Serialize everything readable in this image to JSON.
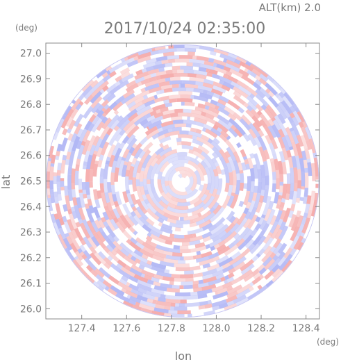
{
  "header": {
    "altitude_label": "ALT(km)  2.0",
    "timestamp": "2017/10/24  02:35:00"
  },
  "chart_data": {
    "type": "heatmap",
    "title": "2017/10/24  02:35:00",
    "subtitle": "ALT(km)  2.0",
    "xlabel": "lon",
    "ylabel": "lat",
    "x_unit": "(deg)",
    "y_unit": "(deg)",
    "xlim": [
      127.24,
      128.46
    ],
    "ylim": [
      25.96,
      27.04
    ],
    "x_ticks": [
      "127.4",
      "127.6",
      "127.8",
      "128.0",
      "128.2",
      "128.4"
    ],
    "y_ticks": [
      "26.0",
      "26.1",
      "26.2",
      "26.3",
      "26.4",
      "26.5",
      "26.6",
      "26.7",
      "26.8",
      "26.9",
      "27.0"
    ],
    "radar_center": {
      "lon": 127.85,
      "lat": 26.5
    },
    "coverage_radius_deg_lat": 0.535,
    "colormap": {
      "positive": "#f4a3a3",
      "negative": "#aab0f4",
      "zero": "#ffffff"
    },
    "grid": false
  }
}
